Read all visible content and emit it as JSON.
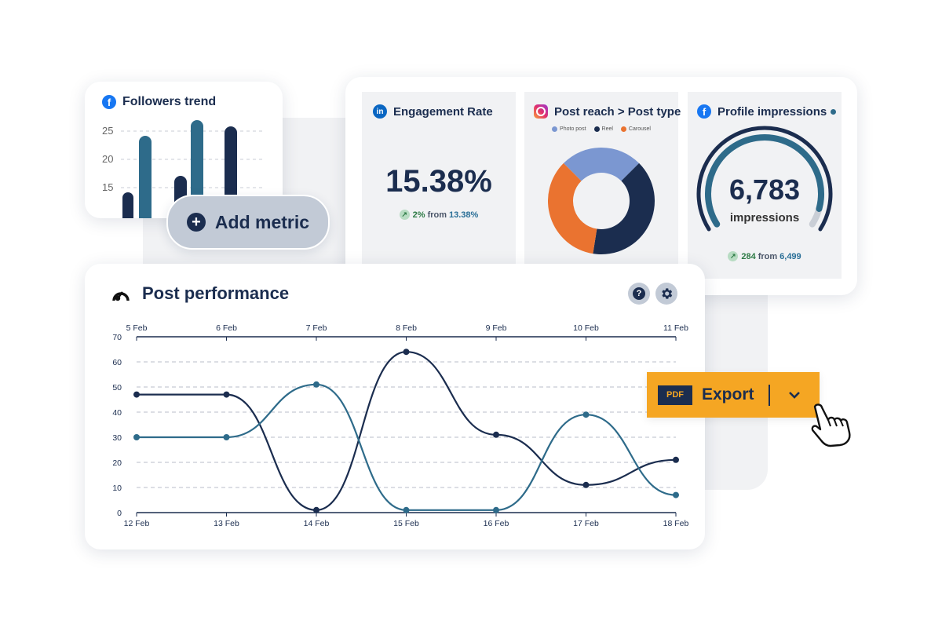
{
  "followers_card": {
    "title": "Followers trend",
    "platform_icon": "facebook-icon",
    "chart_data": {
      "type": "bar",
      "yticks": [
        "25",
        "20",
        "15"
      ],
      "series": [
        {
          "color": "#2e6b8a",
          "values": [
            24,
            26
          ]
        },
        {
          "color": "#1b2d4f",
          "values": [
            13,
            18,
            25
          ]
        }
      ]
    }
  },
  "add_metric": {
    "label": "Add metric",
    "icon": "plus-icon"
  },
  "engagement": {
    "title": "Engagement Rate",
    "platform_icon": "linkedin-icon",
    "value": "15.38%",
    "delta": "2%",
    "from_label": "from",
    "base": "13.38%"
  },
  "reach": {
    "title": "Post reach > Post type",
    "platform_icon": "instagram-icon",
    "chart_data": {
      "type": "pie",
      "labels": [
        "Photo post",
        "Reel",
        "Carousel"
      ],
      "values": [
        25,
        40,
        35
      ],
      "colors": [
        "#7b97d1",
        "#1b2d4f",
        "#ea7330"
      ]
    }
  },
  "impressions": {
    "title": "Profile impressions",
    "platform_icon": "facebook-icon",
    "value": "6,783",
    "unit": "impressions",
    "delta": "284",
    "from_label": "from",
    "base": "6,499",
    "gauge_fraction": 0.93
  },
  "post_performance": {
    "title": "Post performance",
    "icon": "analytics-icon",
    "chart_data": {
      "type": "line",
      "y_ticks": [
        "70",
        "60",
        "50",
        "40",
        "30",
        "20",
        "10",
        "0"
      ],
      "ylim": [
        0,
        70
      ],
      "x_top": [
        "5 Feb",
        "6 Feb",
        "7 Feb",
        "8 Feb",
        "9 Feb",
        "10 Feb",
        "11 Feb"
      ],
      "x_bottom": [
        "12 Feb",
        "13 Feb",
        "14 Feb",
        "15 Feb",
        "16 Feb",
        "17 Feb",
        "18 Feb"
      ],
      "series": [
        {
          "color": "#1b2d4f",
          "values": [
            47,
            47,
            1,
            64,
            31,
            11,
            21
          ]
        },
        {
          "color": "#2e6b8a",
          "values": [
            30,
            30,
            51,
            1,
            1,
            39,
            7
          ]
        }
      ]
    }
  },
  "export": {
    "badge": "PDF",
    "label": "Export",
    "chevron_icon": "chevron-down-icon"
  }
}
